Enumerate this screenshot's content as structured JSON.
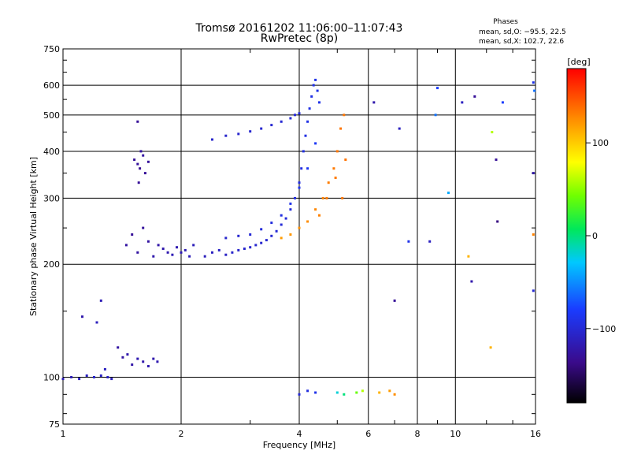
{
  "chart_data": {
    "type": "scatter",
    "title": "Tromsø 20161202 11:06:00–11:07:43",
    "subtitle": "RwPretec (8p)",
    "xlabel": "Frequency [MHz]",
    "ylabel": "Stationary phase Virtual Height [km]",
    "x_scale": "log",
    "y_scale": "log",
    "xlim": [
      1,
      16
    ],
    "ylim": [
      75,
      750
    ],
    "x_ticks": [
      1,
      2,
      4,
      6,
      8,
      10,
      16
    ],
    "x_tick_labels": [
      "1",
      "2",
      "4",
      "6",
      "8",
      "10",
      "16"
    ],
    "y_ticks": [
      75,
      100,
      200,
      300,
      400,
      500,
      600,
      750
    ],
    "y_tick_labels": [
      "75",
      "100",
      "200",
      "300",
      "400",
      "500",
      "600",
      "750"
    ],
    "grid": true,
    "phases_header": "Phases",
    "phases_stats": [
      "mean, sd,O: −95.5, 22.5",
      "mean, sd,X: 102.7, 22.6"
    ],
    "colorbar": {
      "label": "[deg]",
      "range": [
        -180,
        180
      ],
      "ticks": [
        100,
        0,
        -100
      ],
      "tick_labels": [
        "100",
        "0",
        "−100"
      ]
    },
    "series": [
      {
        "points": [
          [
            1.0,
            99,
            -115
          ],
          [
            1.05,
            100,
            -115
          ],
          [
            1.1,
            99,
            -110
          ],
          [
            1.15,
            101,
            -110
          ],
          [
            1.2,
            100,
            -105
          ],
          [
            1.25,
            101,
            -108
          ],
          [
            1.28,
            105,
            -110
          ],
          [
            1.3,
            100,
            -108
          ],
          [
            1.33,
            99,
            -112
          ],
          [
            1.12,
            145,
            -120
          ],
          [
            1.25,
            160,
            -115
          ],
          [
            1.22,
            140,
            -112
          ]
        ]
      },
      {
        "points": [
          [
            1.38,
            120,
            -125
          ],
          [
            1.42,
            113,
            -125
          ],
          [
            1.46,
            115,
            -120
          ],
          [
            1.5,
            108,
            -122
          ],
          [
            1.55,
            112,
            -118
          ],
          [
            1.6,
            110,
            -120
          ],
          [
            1.65,
            107,
            -118
          ],
          [
            1.7,
            112,
            -120
          ],
          [
            1.74,
            110,
            -118
          ]
        ]
      },
      {
        "points": [
          [
            1.52,
            380,
            -130
          ],
          [
            1.55,
            370,
            -128
          ],
          [
            1.57,
            360,
            -132
          ],
          [
            1.6,
            390,
            -125
          ],
          [
            1.62,
            350,
            -130
          ],
          [
            1.65,
            375,
            -128
          ],
          [
            1.58,
            400,
            -126
          ],
          [
            1.56,
            330,
            -130
          ],
          [
            1.55,
            480,
            -130
          ]
        ]
      },
      {
        "points": [
          [
            1.45,
            225,
            -125
          ],
          [
            1.5,
            240,
            -130
          ],
          [
            1.55,
            215,
            -125
          ],
          [
            1.6,
            250,
            -128
          ],
          [
            1.65,
            230,
            -125
          ],
          [
            1.7,
            210,
            -120
          ],
          [
            1.75,
            225,
            -122
          ],
          [
            1.8,
            220,
            -120
          ],
          [
            1.85,
            215,
            -118
          ],
          [
            1.9,
            212,
            -115
          ],
          [
            1.95,
            222,
            -118
          ],
          [
            2.0,
            215,
            -116
          ],
          [
            2.05,
            218,
            -115
          ],
          [
            2.1,
            210,
            -114
          ],
          [
            2.15,
            225,
            -113
          ]
        ]
      },
      {
        "points": [
          [
            2.3,
            210,
            -112
          ],
          [
            2.4,
            215,
            -110
          ],
          [
            2.5,
            218,
            -108
          ],
          [
            2.6,
            212,
            -108
          ],
          [
            2.7,
            215,
            -105
          ],
          [
            2.8,
            218,
            -105
          ],
          [
            2.9,
            220,
            -104
          ],
          [
            3.0,
            222,
            -104
          ],
          [
            3.1,
            225,
            -103
          ],
          [
            3.2,
            228,
            -103
          ],
          [
            3.3,
            232,
            -102
          ],
          [
            3.4,
            238,
            -101
          ],
          [
            3.5,
            245,
            -100
          ],
          [
            3.6,
            255,
            -99
          ],
          [
            3.7,
            265,
            -98
          ],
          [
            3.8,
            280,
            -97
          ],
          [
            3.9,
            300,
            -96
          ],
          [
            4.0,
            330,
            -95
          ],
          [
            4.05,
            360,
            -95
          ],
          [
            4.1,
            400,
            -94
          ],
          [
            4.15,
            440,
            -93
          ],
          [
            4.2,
            480,
            -92
          ],
          [
            4.25,
            520,
            -92
          ],
          [
            4.3,
            560,
            -92
          ],
          [
            4.35,
            600,
            -91
          ],
          [
            4.4,
            620,
            -90
          ],
          [
            4.45,
            580,
            -90
          ],
          [
            4.5,
            540,
            -90
          ]
        ]
      },
      {
        "points": [
          [
            2.6,
            235,
            -105
          ],
          [
            2.8,
            238,
            -103
          ],
          [
            3.0,
            240,
            -100
          ],
          [
            3.2,
            248,
            -98
          ],
          [
            3.4,
            258,
            -96
          ],
          [
            3.6,
            270,
            -94
          ],
          [
            3.8,
            290,
            -90
          ],
          [
            4.0,
            320,
            -88
          ],
          [
            4.2,
            360,
            -86
          ],
          [
            4.4,
            420,
            -84
          ]
        ]
      },
      {
        "points": [
          [
            2.4,
            430,
            -105
          ],
          [
            2.6,
            440,
            -105
          ],
          [
            2.8,
            445,
            -104
          ],
          [
            3.0,
            452,
            -103
          ],
          [
            3.2,
            460,
            -103
          ],
          [
            3.4,
            470,
            -102
          ],
          [
            3.6,
            480,
            -101
          ],
          [
            3.8,
            490,
            -100
          ],
          [
            3.9,
            500,
            -100
          ],
          [
            4.0,
            505,
            -99
          ]
        ]
      },
      {
        "points": [
          [
            3.6,
            235,
            120
          ],
          [
            3.8,
            240,
            122
          ],
          [
            4.0,
            250,
            124
          ],
          [
            4.2,
            260,
            126
          ],
          [
            4.4,
            280,
            128
          ],
          [
            4.6,
            300,
            130
          ],
          [
            4.75,
            330,
            132
          ],
          [
            4.9,
            360,
            133
          ],
          [
            5.0,
            400,
            134
          ],
          [
            5.1,
            460,
            135
          ],
          [
            5.2,
            500,
            135
          ],
          [
            4.5,
            270,
            130
          ],
          [
            4.7,
            300,
            132
          ],
          [
            4.95,
            340,
            133
          ],
          [
            5.15,
            300,
            135
          ],
          [
            5.25,
            380,
            136
          ]
        ]
      },
      {
        "points": [
          [
            4.0,
            90,
            -100
          ],
          [
            4.2,
            92,
            -95
          ],
          [
            4.4,
            91,
            -90
          ],
          [
            5.0,
            91,
            -20
          ],
          [
            5.2,
            90,
            0
          ],
          [
            5.6,
            91,
            40
          ],
          [
            5.8,
            92,
            60
          ],
          [
            6.4,
            91,
            110
          ],
          [
            6.8,
            92,
            120
          ],
          [
            7.0,
            90,
            125
          ]
        ]
      },
      {
        "points": [
          [
            6.2,
            540,
            -120
          ],
          [
            7.0,
            160,
            -130
          ],
          [
            7.2,
            460,
            -110
          ],
          [
            7.6,
            230,
            -90
          ],
          [
            8.6,
            230,
            -110
          ],
          [
            9.0,
            590,
            -80
          ],
          [
            8.9,
            500,
            -60
          ],
          [
            9.6,
            310,
            -40
          ],
          [
            10.4,
            540,
            -110
          ],
          [
            11.2,
            560,
            -130
          ],
          [
            12.4,
            450,
            60
          ],
          [
            12.7,
            380,
            -130
          ],
          [
            13.2,
            540,
            -80
          ],
          [
            12.8,
            260,
            -140
          ],
          [
            15.8,
            610,
            -90
          ],
          [
            15.9,
            580,
            -60
          ],
          [
            15.8,
            350,
            -120
          ],
          [
            15.8,
            170,
            -100
          ],
          [
            15.8,
            240,
            130
          ],
          [
            11.0,
            180,
            -120
          ],
          [
            10.8,
            210,
            110
          ],
          [
            12.3,
            120,
            110
          ]
        ]
      }
    ]
  }
}
